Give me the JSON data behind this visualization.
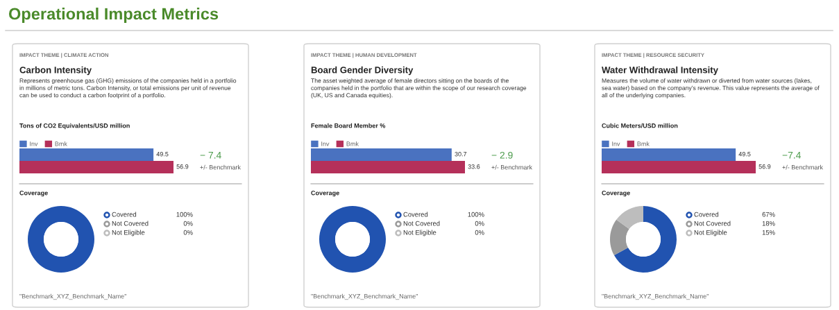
{
  "chart_data": [
    {
      "type": "other",
      "title": "Operational Impact Metrics"
    },
    {
      "type": "bar",
      "orientation": "horizontal",
      "subtitle": "IMPACT THEME | CLIMATE ACTION",
      "title": "Carbon Intensity",
      "categories": [
        null
      ],
      "series": [
        {
          "name": "Inv",
          "color": "#4a72c0",
          "values": [
            49.5
          ]
        },
        {
          "name": "Bmk",
          "color": "#b5305a",
          "values": [
            56.9
          ]
        }
      ],
      "data_labels": true,
      "legend": "top left",
      "tick_labels": false,
      "annotations": [
        "Represents greenhouse gas (GHG) emissions of the companies held in a portfolio\nin millions of metric tons. Carbon Intensity, or total emissions per unit of revenue\ncan be used to conduct a carbon footprint of a portfolio.",
        "Tons of CO2 Equivalents/USD million",
        "− 7.4",
        "+/- Benchmark"
      ]
    },
    {
      "type": "donut",
      "title": "Coverage",
      "categories": [
        "Covered",
        "Not Covered",
        "Not Eligible"
      ],
      "values": [
        100,
        0,
        0
      ],
      "colors": [
        "#2153b0",
        "#9a9a9a",
        "#bdbdbd"
      ],
      "value_labels": [
        "100%",
        "0%",
        "0%"
      ],
      "legend": "right",
      "annotations": [
        "\"Benchmark_XYZ_Benchmark_Name\""
      ]
    },
    {
      "type": "bar",
      "orientation": "horizontal",
      "subtitle": "IMPACT THEME | HUMAN DEVELOPMENT",
      "title": "Board Gender Diversity",
      "categories": [
        null
      ],
      "series": [
        {
          "name": "Inv",
          "color": "#4a72c0",
          "values": [
            30.7
          ]
        },
        {
          "name": "Bmk",
          "color": "#b5305a",
          "values": [
            33.6
          ]
        }
      ],
      "data_labels": true,
      "legend": "top left",
      "tick_labels": false,
      "annotations": [
        "The asset weighted average of female directors sitting on the boards of the\ncompanies held in the portfolio that are within the scope of our research coverage\n(UK, US and Canada equities).",
        "Female Board Member %",
        "− 2.9",
        "+/- Benchmark"
      ]
    },
    {
      "type": "donut",
      "title": "Coverage",
      "categories": [
        "Covered",
        "Not Covered",
        "Not Eligible"
      ],
      "values": [
        100,
        0,
        0
      ],
      "colors": [
        "#2153b0",
        "#9a9a9a",
        "#bdbdbd"
      ],
      "value_labels": [
        "100%",
        "0%",
        "0%"
      ],
      "legend": "right",
      "annotations": [
        "\"Benchmark_XYZ_Benchmark_Name\""
      ]
    },
    {
      "type": "bar",
      "orientation": "horizontal",
      "subtitle": "IMPACT THEME | RESOURCE SECURITY",
      "title": "Water Withdrawal Intensity",
      "categories": [
        null
      ],
      "series": [
        {
          "name": "Inv",
          "color": "#4a72c0",
          "values": [
            49.5
          ]
        },
        {
          "name": "Bmk",
          "color": "#b5305a",
          "values": [
            56.9
          ]
        }
      ],
      "data_labels": true,
      "legend": "top left",
      "tick_labels": false,
      "annotations": [
        "Measures the volume of water withdrawn or diverted from water sources (lakes,\nsea water) based on the company’s revenue. This value represents the average of\nall of the underlying companies.",
        "Cubic Meters/USD million",
        "−7.4",
        "+/- Benchmark"
      ]
    },
    {
      "type": "donut",
      "title": "Coverage",
      "categories": [
        "Covered",
        "Not Covered",
        "Not Eligible"
      ],
      "values": [
        67,
        18,
        15
      ],
      "colors": [
        "#2153b0",
        "#9a9a9a",
        "#bdbdbd"
      ],
      "value_labels": [
        "67%",
        "18%",
        "15%"
      ],
      "legend": "right",
      "annotations": [
        "\"Benchmark_XYZ_Benchmark_Name\""
      ]
    }
  ]
}
